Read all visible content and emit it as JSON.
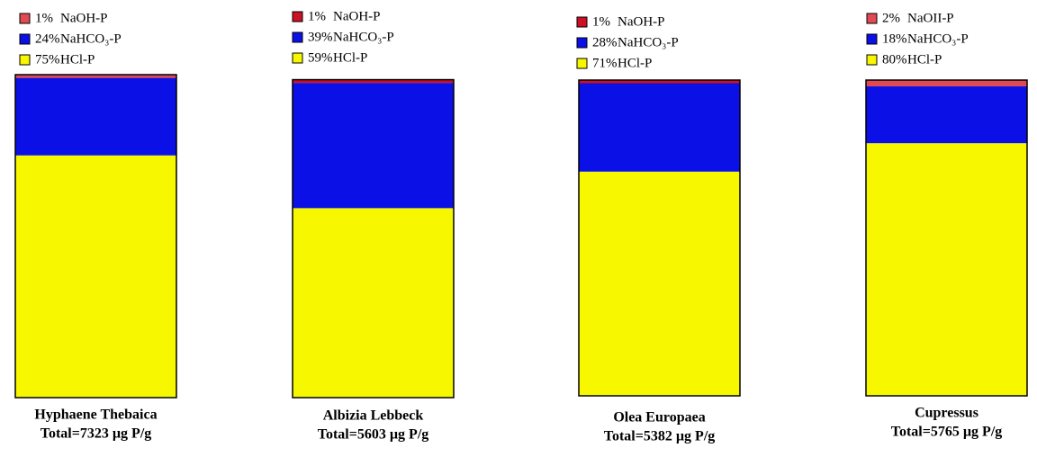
{
  "chart_data": [
    {
      "type": "stacked-bar",
      "title": "Hyphaene Thebaica",
      "subtitle": "Total=7323 µg P/g",
      "ylim": [
        0,
        100
      ],
      "series": [
        {
          "name": "NaOH-P",
          "color": "#e04a55",
          "values": [
            1
          ],
          "value_labels": [
            "1%"
          ]
        },
        {
          "name": "NaHCO₃-P",
          "color": "#0a10e6",
          "values": [
            24
          ],
          "value_labels": [
            "24%"
          ]
        },
        {
          "name": "HCl-P",
          "color": "#f7f700",
          "values": [
            75
          ],
          "value_labels": [
            "75%"
          ]
        }
      ]
    },
    {
      "type": "stacked-bar",
      "title": "Albizia Lebbeck",
      "subtitle": "Total=5603 µg P/g",
      "ylim": [
        0,
        100
      ],
      "series": [
        {
          "name": "NaOH-P",
          "color": "#cc1025",
          "values": [
            1
          ],
          "value_labels": [
            "1%"
          ]
        },
        {
          "name": "NaHCO₃-P",
          "color": "#0a10e6",
          "values": [
            39
          ],
          "value_labels": [
            "39%"
          ]
        },
        {
          "name": "HCl-P",
          "color": "#f7f700",
          "values": [
            59
          ],
          "value_labels": [
            "59%"
          ]
        }
      ]
    },
    {
      "type": "stacked-bar",
      "title": "Olea Europaea",
      "subtitle": "Total=5382 µg P/g",
      "ylim": [
        0,
        100
      ],
      "series": [
        {
          "name": "NaOH-P",
          "color": "#cc1025",
          "values": [
            1
          ],
          "value_labels": [
            "1%"
          ]
        },
        {
          "name": "NaHCO₃-P",
          "color": "#0a10e6",
          "values": [
            28
          ],
          "value_labels": [
            "28%"
          ]
        },
        {
          "name": "HCl-P",
          "color": "#f7f700",
          "values": [
            71
          ],
          "value_labels": [
            "71%"
          ]
        }
      ]
    },
    {
      "type": "stacked-bar",
      "title": "Cupressus",
      "subtitle": "Total=5765 µg P/g",
      "ylim": [
        0,
        100
      ],
      "series": [
        {
          "name": "NaOII-P",
          "color": "#e04a55",
          "values": [
            2
          ],
          "value_labels": [
            "2%"
          ]
        },
        {
          "name": "NaHCO₃-P",
          "color": "#0a10e6",
          "values": [
            18
          ],
          "value_labels": [
            "18%"
          ]
        },
        {
          "name": "HCl-P",
          "color": "#f7f700",
          "values": [
            80
          ],
          "value_labels": [
            "80%"
          ]
        }
      ]
    }
  ]
}
